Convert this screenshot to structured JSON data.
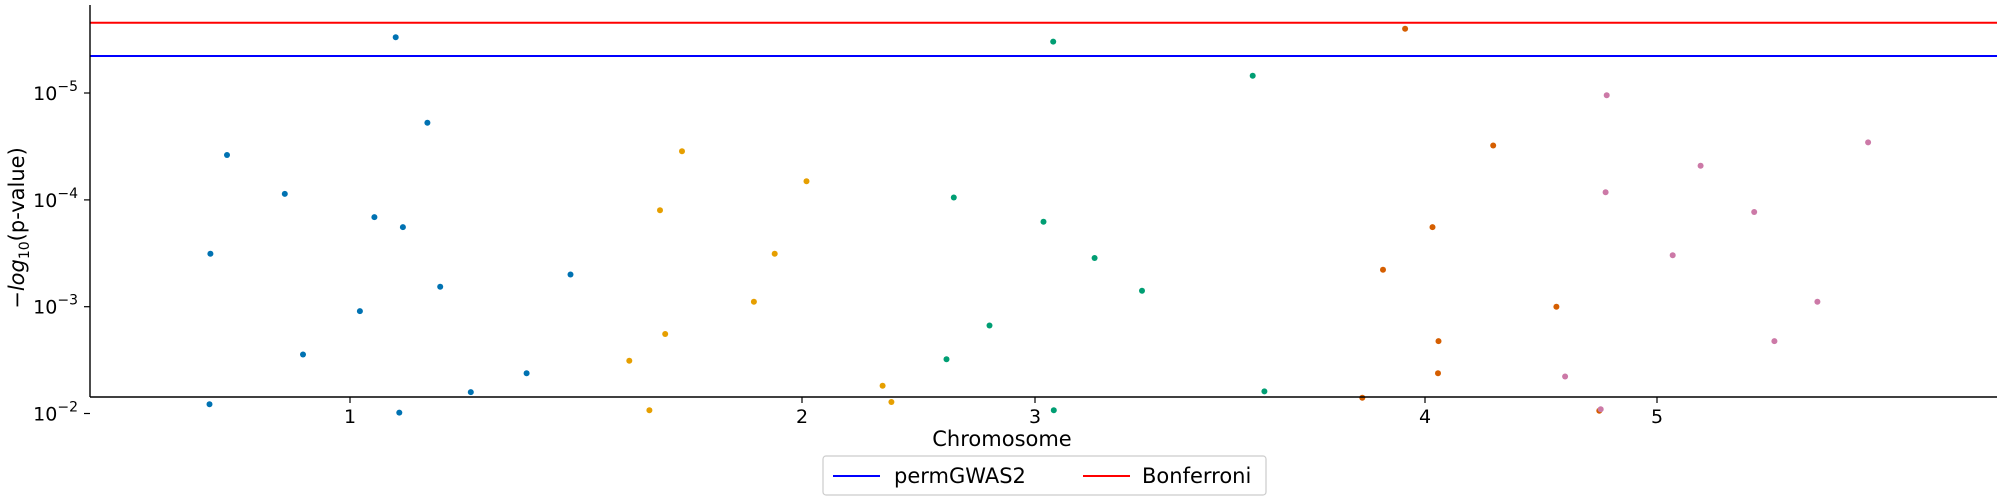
{
  "chart_data": {
    "type": "scatter",
    "title": "",
    "xlabel": "Chromosome",
    "ylabel_main": "−log",
    "ylabel_sub": "10",
    "ylabel_rest": "(p-value)",
    "y_scale": "log",
    "y_inverted": true,
    "ylim": [
      0.007,
      1.5e-06
    ],
    "y_ticks": [
      {
        "value": 1e-05,
        "base": "10",
        "exp": "−5"
      },
      {
        "value": 0.0001,
        "base": "10",
        "exp": "−4"
      },
      {
        "value": 0.001,
        "base": "10",
        "exp": "−3"
      },
      {
        "value": 0.01,
        "base": "10",
        "exp": "−2"
      }
    ],
    "x_ticks": [
      "1",
      "2",
      "3",
      "4",
      "5"
    ],
    "grid": false,
    "legend_position": "bottom-center",
    "thresholds": [
      {
        "name": "permGWAS2",
        "value": 4.5e-06,
        "color": "#0000ff"
      },
      {
        "name": "Bonferroni",
        "value": 2.2e-06,
        "color": "#ff0000"
      }
    ],
    "series": [
      {
        "color": "#0072b2",
        "points": [
          [
            1,
            3e-06
          ],
          [
            1,
            1.9e-05
          ],
          [
            1,
            3.8e-05
          ],
          [
            1,
            8.8e-05
          ],
          [
            1,
            0.000145
          ],
          [
            1,
            0.00018
          ],
          [
            1,
            0.00032
          ],
          [
            1,
            0.0005
          ],
          [
            1,
            0.00065
          ],
          [
            1,
            0.0011
          ],
          [
            1,
            0.0028
          ],
          [
            1,
            0.0042
          ],
          [
            1,
            0.0063
          ],
          [
            1,
            0.0082
          ],
          [
            1,
            0.0098
          ]
        ]
      },
      {
        "color": "#e69f00",
        "points": [
          [
            2,
            3.5e-05
          ],
          [
            2,
            6.7e-05
          ],
          [
            2,
            0.000125
          ],
          [
            2,
            0.00032
          ],
          [
            2,
            0.0009
          ],
          [
            2,
            0.0018
          ],
          [
            2,
            0.0032
          ],
          [
            2,
            0.0055
          ],
          [
            2,
            0.0078
          ],
          [
            2,
            0.0093
          ]
        ]
      },
      {
        "color": "#009e73",
        "points": [
          [
            3,
            3.3e-06
          ],
          [
            3,
            6.9e-06
          ],
          [
            3,
            9.5e-05
          ],
          [
            3,
            0.00016
          ],
          [
            3,
            0.00035
          ],
          [
            3,
            0.00071
          ],
          [
            3,
            0.0015
          ],
          [
            3,
            0.0031
          ],
          [
            3,
            0.0062
          ],
          [
            3,
            0.0093
          ]
        ]
      },
      {
        "color": "#d55e00",
        "points": [
          [
            4,
            2.5e-06
          ],
          [
            4,
            3.1e-05
          ],
          [
            4,
            0.00018
          ],
          [
            4,
            0.00045
          ],
          [
            4,
            0.001
          ],
          [
            4,
            0.0021
          ],
          [
            4,
            0.0042
          ],
          [
            4,
            0.0071
          ],
          [
            4,
            0.0094
          ]
        ]
      },
      {
        "color": "#cc79a7",
        "points": [
          [
            5,
            1.05e-05
          ],
          [
            5,
            2.9e-05
          ],
          [
            5,
            4.8e-05
          ],
          [
            5,
            8.5e-05
          ],
          [
            5,
            0.00013
          ],
          [
            5,
            0.00033
          ],
          [
            5,
            0.0009
          ],
          [
            5,
            0.0021
          ],
          [
            5,
            0.0045
          ],
          [
            5,
            0.0091
          ]
        ]
      }
    ]
  }
}
